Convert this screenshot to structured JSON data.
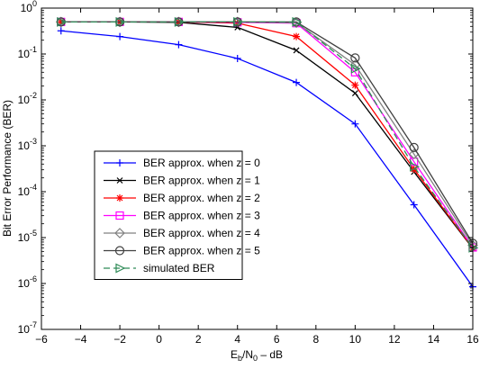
{
  "chart_data": {
    "type": "line",
    "title": "",
    "xlabel": {
      "base": "E",
      "sub1": "b",
      "mid": "/N",
      "sub2": "0",
      "tail": " – dB"
    },
    "ylabel": "Bit Error Performance (BER)",
    "xlim": [
      -6,
      16
    ],
    "ylim": [
      1e-07,
      1
    ],
    "yscale": "log",
    "grid": false,
    "x_ticks": [
      -6,
      -4,
      -2,
      0,
      2,
      4,
      6,
      8,
      10,
      12,
      14,
      16
    ],
    "x_tick_labels": [
      "−6",
      "−4",
      "−2",
      "0",
      "2",
      "4",
      "6",
      "8",
      "10",
      "12",
      "14",
      "16"
    ],
    "y_ticks": [
      {
        "value": 1,
        "base": "10",
        "exp": "0"
      },
      {
        "value": 0.1,
        "base": "10",
        "exp": "-1"
      },
      {
        "value": 0.01,
        "base": "10",
        "exp": "-2"
      },
      {
        "value": 0.001,
        "base": "10",
        "exp": "-3"
      },
      {
        "value": 0.0001,
        "base": "10",
        "exp": "-4"
      },
      {
        "value": 1e-05,
        "base": "10",
        "exp": "-5"
      },
      {
        "value": 1e-06,
        "base": "10",
        "exp": "-6"
      },
      {
        "value": 1e-07,
        "base": "10",
        "exp": "-7"
      }
    ],
    "legend_position": "lower-left",
    "x": [
      -5,
      -2,
      1,
      4,
      7,
      10,
      13,
      16
    ],
    "series": [
      {
        "name": "BER approx. when z = 0",
        "color": "#0000ff",
        "marker": "plus",
        "dash": "solid",
        "values": [
          0.32,
          0.24,
          0.16,
          0.08,
          0.024,
          0.003,
          5.2e-05,
          8.5e-07
        ]
      },
      {
        "name": "BER approx. when z = 1",
        "color": "#000000",
        "marker": "x",
        "dash": "solid",
        "values": [
          0.5,
          0.5,
          0.49,
          0.38,
          0.12,
          0.014,
          0.00027,
          5.8e-06
        ]
      },
      {
        "name": "BER approx. when z = 2",
        "color": "#ff0000",
        "marker": "star",
        "dash": "solid",
        "values": [
          0.5,
          0.5,
          0.5,
          0.47,
          0.24,
          0.021,
          0.00031,
          5.9e-06
        ]
      },
      {
        "name": "BER approx. when z = 3",
        "color": "#ff00ff",
        "marker": "square",
        "dash": "solid",
        "values": [
          0.5,
          0.5,
          0.5,
          0.49,
          0.47,
          0.04,
          0.00045,
          6.1e-06
        ]
      },
      {
        "name": "BER approx. when z = 4",
        "color": "#808080",
        "marker": "diamond",
        "dash": "solid",
        "values": [
          0.5,
          0.5,
          0.5,
          0.5,
          0.48,
          0.058,
          0.00066,
          6.8e-06
        ]
      },
      {
        "name": "BER approx. when z = 5",
        "color": "#404040",
        "marker": "circle",
        "dash": "solid",
        "values": [
          0.5,
          0.5,
          0.5,
          0.5,
          0.5,
          0.082,
          0.00092,
          7.5e-06
        ]
      },
      {
        "name": "simulated BER",
        "color": "#2e8b57",
        "marker": "triangle-right",
        "dash": "dashed",
        "values": [
          0.5,
          0.5,
          0.5,
          0.5,
          0.5,
          0.048,
          0.00035,
          6e-06
        ]
      }
    ]
  }
}
